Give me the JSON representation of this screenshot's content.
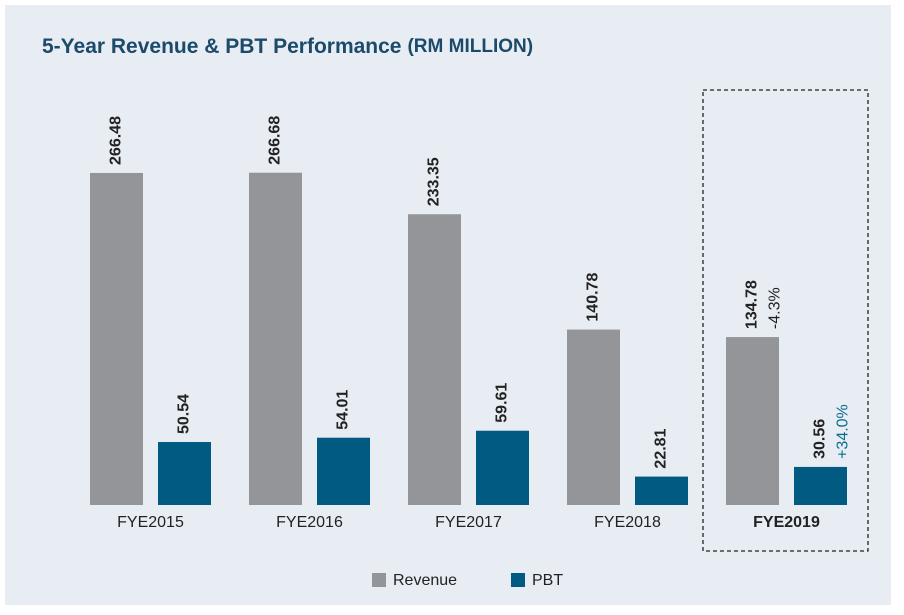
{
  "chart_data": {
    "type": "bar",
    "title": "5-Year Revenue & PBT Performance",
    "unit": "(RM MILLION)",
    "categories": [
      "FYE2015",
      "FYE2016",
      "FYE2017",
      "FYE2018",
      "FYE2019"
    ],
    "highlight": "FYE2019",
    "series": [
      {
        "name": "Revenue",
        "color": "#939598",
        "values": [
          266.48,
          266.68,
          233.35,
          140.78,
          134.78
        ],
        "changes": [
          null,
          null,
          null,
          null,
          "-4.3%"
        ],
        "change_color": "#222222"
      },
      {
        "name": "PBT",
        "color": "#005a82",
        "values": [
          50.54,
          54.01,
          59.61,
          22.81,
          30.56
        ],
        "changes": [
          null,
          null,
          null,
          null,
          "+34.0%"
        ],
        "change_color": "#0a6d92"
      }
    ]
  }
}
